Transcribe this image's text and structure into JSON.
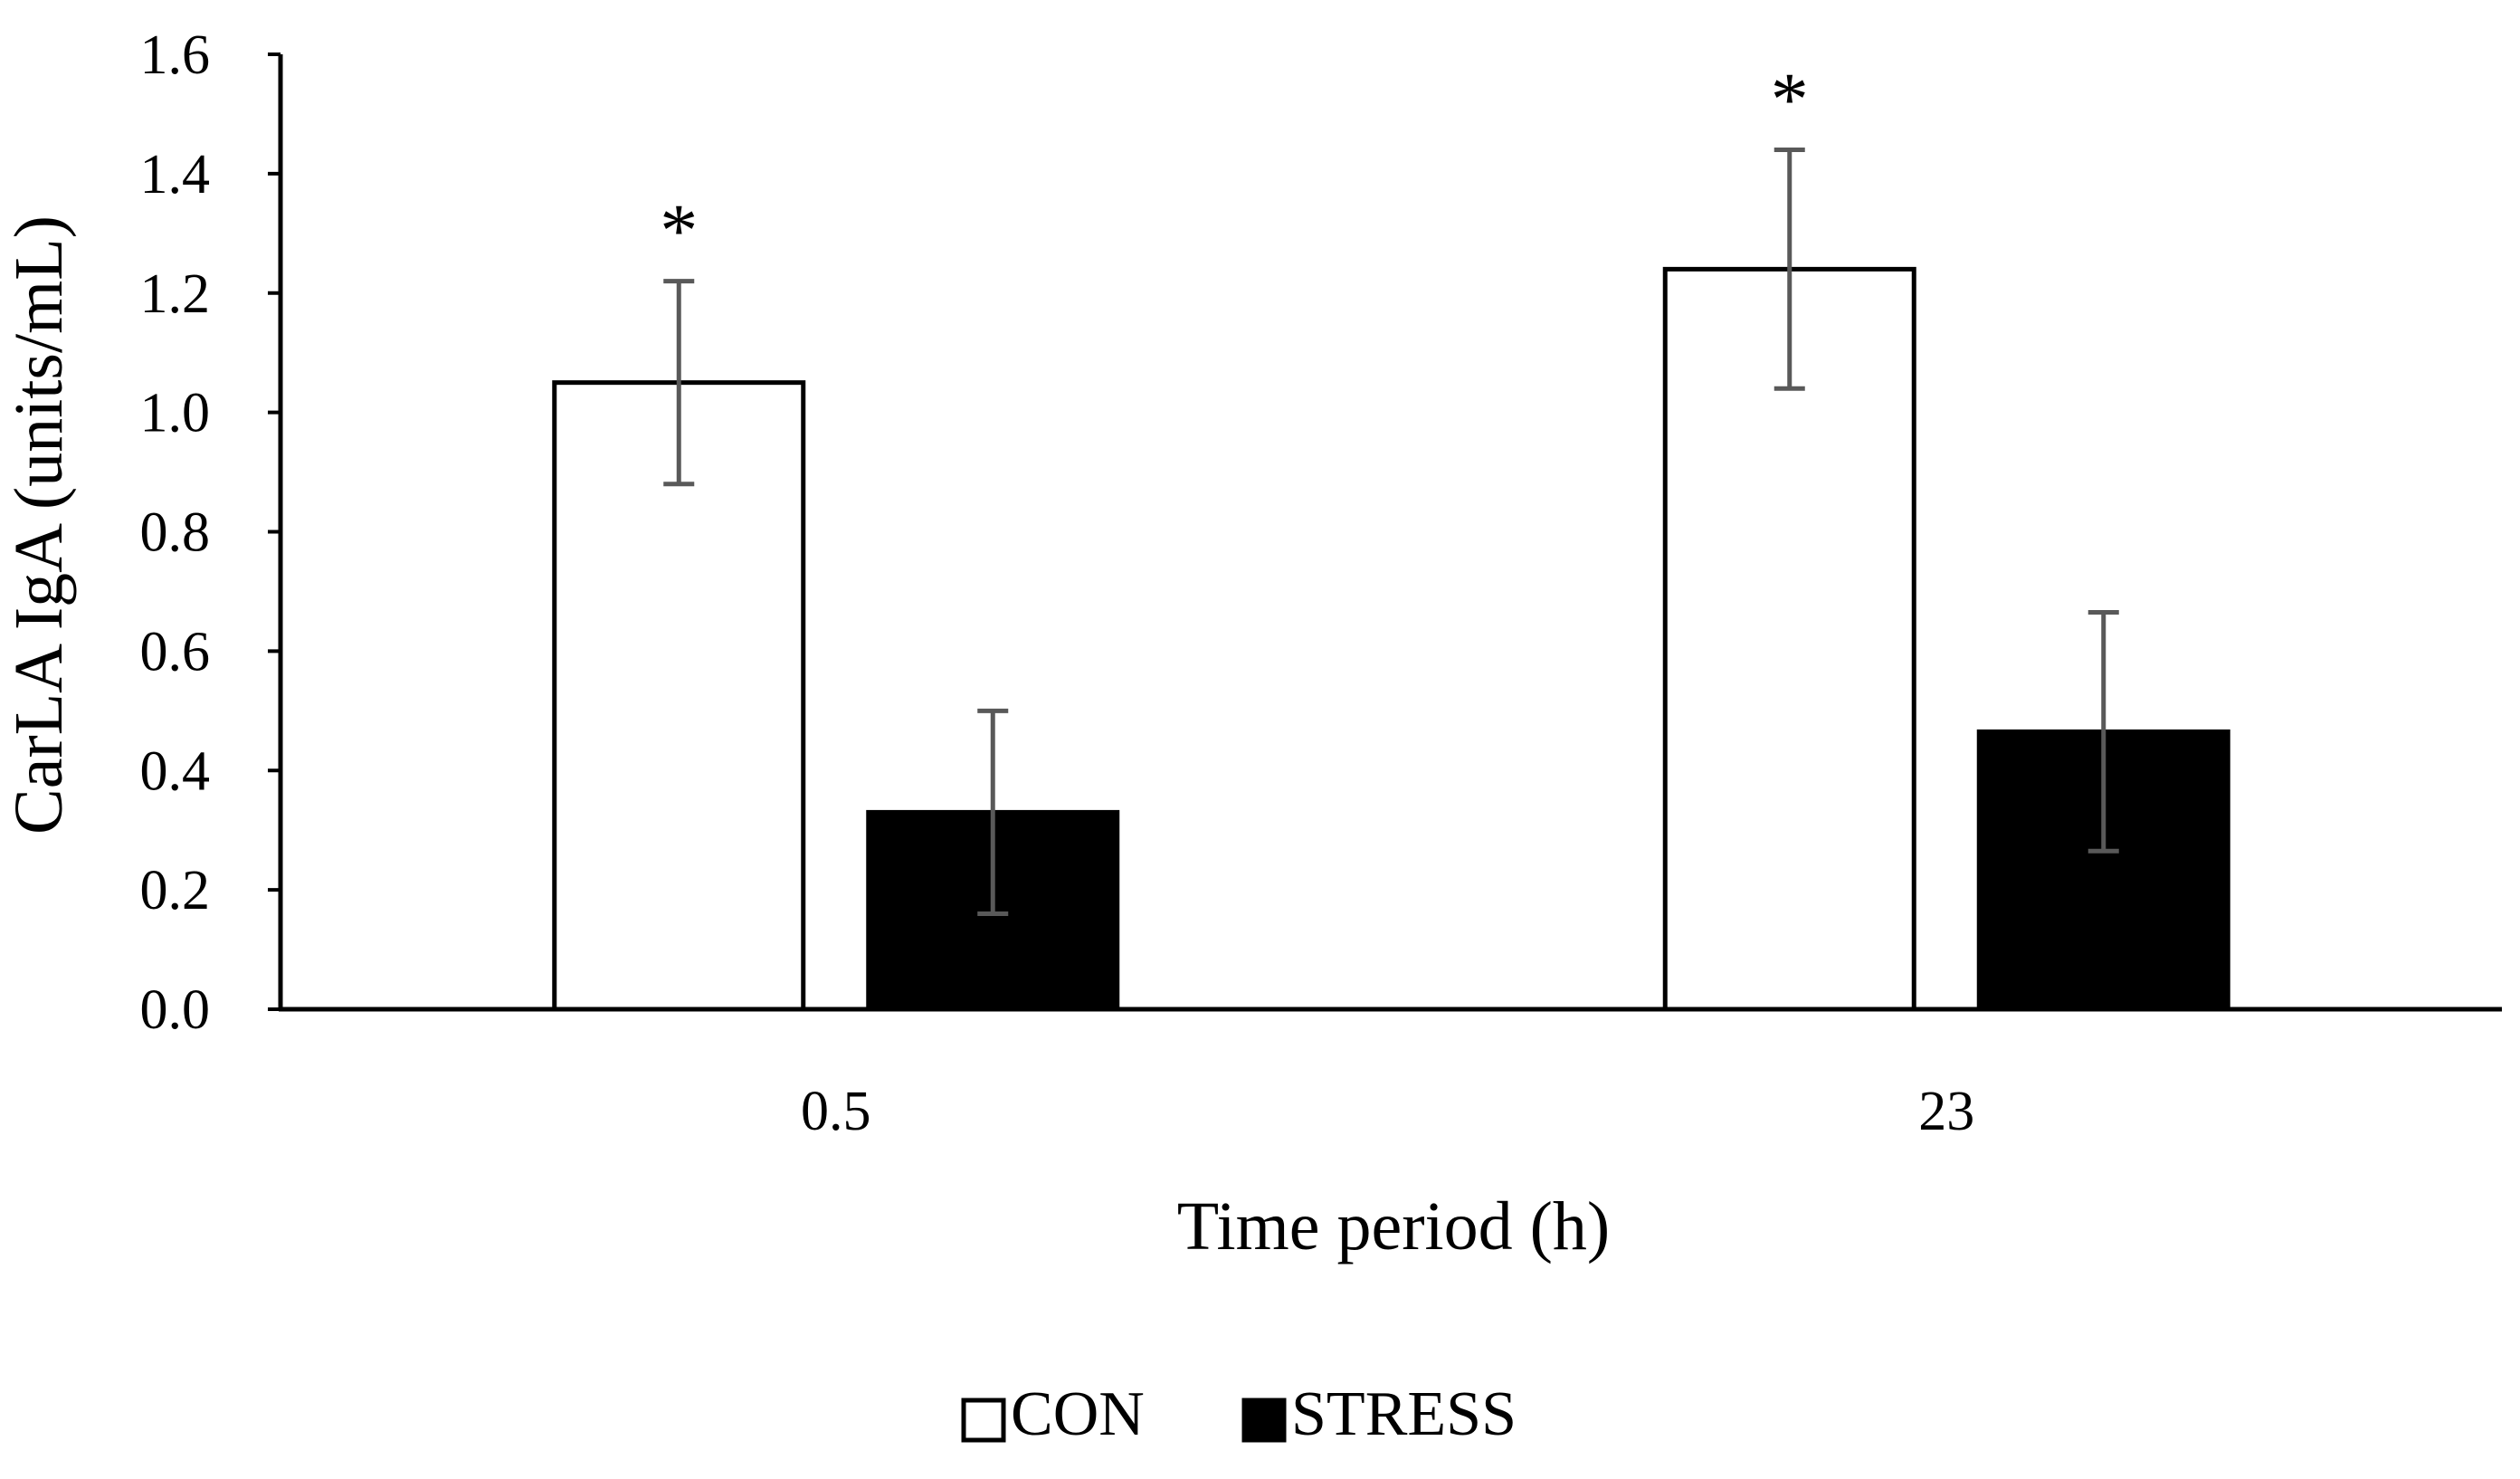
{
  "chart_data": {
    "type": "bar",
    "title": "",
    "xlabel": "Time period (h)",
    "ylabel": "CarLA IgA (units/mL)",
    "categories": [
      "0.5",
      "23"
    ],
    "ylim": [
      0,
      1.6
    ],
    "yticks": [
      0.0,
      0.2,
      0.4,
      0.6,
      0.8,
      1.0,
      1.2,
      1.4,
      1.6
    ],
    "ytick_labels": [
      "0.0",
      "0.2",
      "0.4",
      "0.6",
      "0.8",
      "1.0",
      "1.2",
      "1.4",
      "1.6"
    ],
    "grid": false,
    "legend_position": "bottom-center",
    "series": [
      {
        "name": "CON",
        "fill": "#ffffff",
        "stroke": "#000000",
        "values": [
          1.05,
          1.24
        ],
        "error": [
          0.17,
          0.2
        ]
      },
      {
        "name": "STRESS",
        "fill": "#000000",
        "stroke": "#000000",
        "values": [
          0.33,
          0.465
        ],
        "error": [
          0.17,
          0.2
        ]
      }
    ],
    "annotations": [
      {
        "text": "*",
        "series": 0,
        "category": 0
      },
      {
        "text": "*",
        "series": 0,
        "category": 1
      }
    ],
    "colors": {
      "axis": "#000000",
      "error_bar": "#595959"
    }
  }
}
